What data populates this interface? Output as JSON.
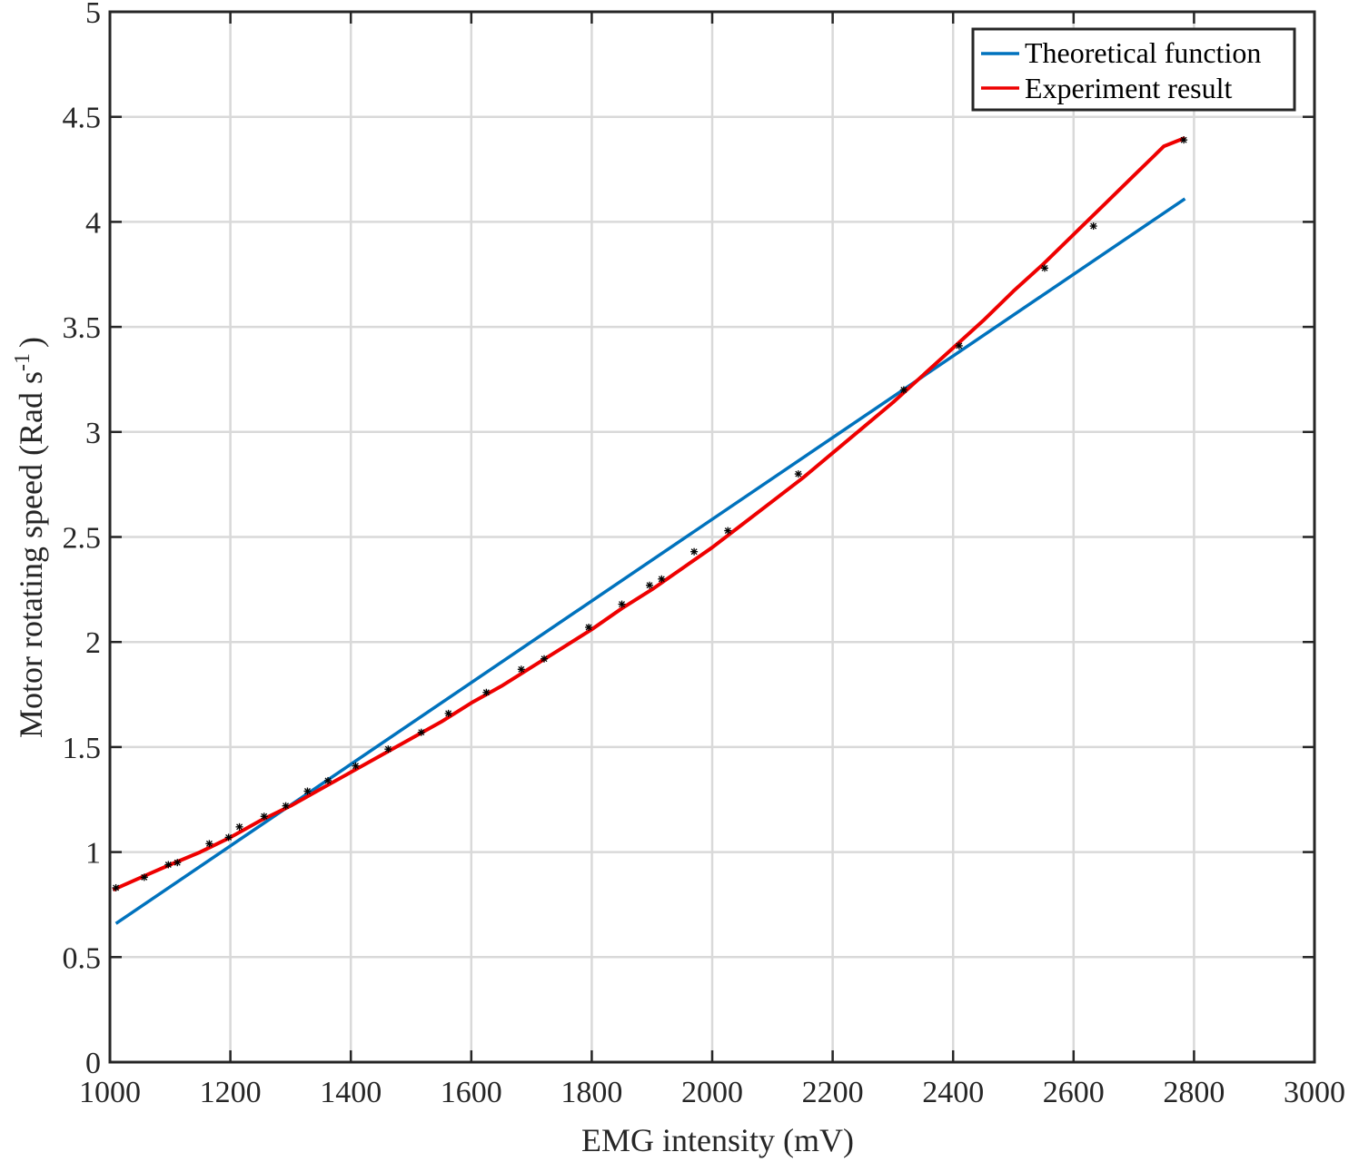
{
  "chart_data": {
    "type": "line",
    "title": "",
    "xlabel": "EMG intensity (mV)",
    "ylabel_main": "Motor rotating speed (Rad s",
    "ylabel_sup": "-1",
    "ylabel_close": ")",
    "xlim": [
      1000,
      3000
    ],
    "ylim": [
      0,
      5
    ],
    "xticks": [
      1000,
      1200,
      1400,
      1600,
      1800,
      2000,
      2200,
      2400,
      2600,
      2800,
      3000
    ],
    "yticks": [
      0,
      0.5,
      1,
      1.5,
      2,
      2.5,
      3,
      3.5,
      4,
      4.5,
      5
    ],
    "grid": true,
    "legend_position": "top-right",
    "colors": {
      "theoretical": "#0072BD",
      "experiment": "#EE0000",
      "markers": "#000000",
      "axes": "#262626",
      "grid": "#d9d9d9"
    },
    "series": [
      {
        "name": "Theoretical function",
        "type": "line",
        "x": [
          1010,
          2785
        ],
        "y": [
          0.66,
          4.11
        ]
      },
      {
        "name": "Experiment result",
        "type": "line",
        "x": [
          1005,
          1060,
          1100,
          1150,
          1200,
          1250,
          1300,
          1350,
          1400,
          1450,
          1500,
          1550,
          1600,
          1650,
          1700,
          1750,
          1800,
          1850,
          1900,
          1950,
          2000,
          2050,
          2100,
          2150,
          2200,
          2250,
          2300,
          2350,
          2400,
          2450,
          2500,
          2550,
          2600,
          2650,
          2700,
          2750,
          2785
        ],
        "y": [
          0.82,
          0.89,
          0.94,
          1.0,
          1.07,
          1.15,
          1.22,
          1.3,
          1.38,
          1.46,
          1.54,
          1.62,
          1.71,
          1.79,
          1.88,
          1.97,
          2.06,
          2.16,
          2.25,
          2.35,
          2.45,
          2.56,
          2.67,
          2.78,
          2.9,
          3.02,
          3.14,
          3.27,
          3.4,
          3.53,
          3.67,
          3.8,
          3.94,
          4.08,
          4.22,
          4.36,
          4.4
        ]
      },
      {
        "name": "",
        "type": "scatter",
        "x": [
          1010,
          1057,
          1097,
          1112,
          1165,
          1197,
          1215,
          1256,
          1292,
          1328,
          1362,
          1408,
          1462,
          1517,
          1562,
          1625,
          1683,
          1721,
          1795,
          1850,
          1896,
          1916,
          1970,
          2026,
          2143,
          2318,
          2410,
          2552,
          2633,
          2783
        ],
        "y": [
          0.83,
          0.88,
          0.94,
          0.95,
          1.04,
          1.07,
          1.12,
          1.17,
          1.22,
          1.29,
          1.34,
          1.41,
          1.49,
          1.57,
          1.66,
          1.76,
          1.87,
          1.92,
          2.07,
          2.18,
          2.27,
          2.3,
          2.43,
          2.53,
          2.8,
          3.2,
          3.41,
          3.78,
          3.98,
          4.39
        ]
      }
    ]
  }
}
